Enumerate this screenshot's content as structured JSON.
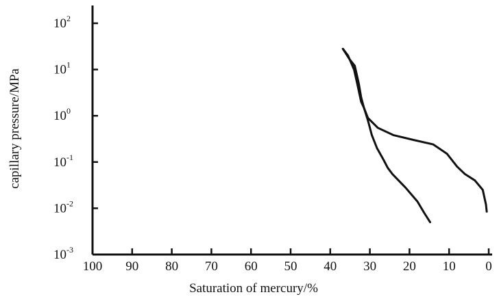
{
  "chart_data": {
    "type": "line",
    "xlabel": "Saturation of mercury/%",
    "ylabel": "capillary pressure/MPa",
    "x_axis": {
      "range": [
        100,
        0
      ],
      "reversed": true,
      "ticks": [
        100,
        90,
        80,
        70,
        60,
        50,
        40,
        30,
        20,
        10,
        0
      ],
      "tick_labels": [
        "100",
        "90",
        "80",
        "70",
        "60",
        "50",
        "40",
        "30",
        "20",
        "10",
        "0"
      ]
    },
    "y_axis": {
      "scale": "log",
      "range": [
        0.001,
        100
      ],
      "ticks": [
        {
          "value": 0.001,
          "base": "10",
          "exp": "-3"
        },
        {
          "value": 0.01,
          "base": "10",
          "exp": "-2"
        },
        {
          "value": 0.1,
          "base": "10",
          "exp": "-1"
        },
        {
          "value": 1,
          "base": "10",
          "exp": "0"
        },
        {
          "value": 10,
          "base": "10",
          "exp": "1"
        },
        {
          "value": 100,
          "base": "10",
          "exp": "2"
        }
      ]
    },
    "grid": false,
    "series": [
      {
        "color": "#111111",
        "points": [
          [
            36.8,
            28
          ],
          [
            35.5,
            20
          ],
          [
            34,
            10
          ],
          [
            33.2,
            5
          ],
          [
            32.2,
            2
          ],
          [
            31.5,
            1.5
          ],
          [
            30.5,
            0.9
          ],
          [
            28,
            0.55
          ],
          [
            24,
            0.38
          ],
          [
            19,
            0.3
          ],
          [
            14,
            0.24
          ],
          [
            10.5,
            0.15
          ],
          [
            8,
            0.08
          ],
          [
            6,
            0.055
          ],
          [
            3.5,
            0.04
          ],
          [
            1.5,
            0.025
          ],
          [
            0.7,
            0.012
          ],
          [
            0.5,
            0.0085
          ]
        ]
      },
      {
        "color": "#111111",
        "points": [
          [
            36.8,
            28
          ],
          [
            35.2,
            17
          ],
          [
            33.8,
            12
          ],
          [
            32.8,
            5
          ],
          [
            32.2,
            2.5
          ],
          [
            31.5,
            1.5
          ],
          [
            30.5,
            0.8
          ],
          [
            29.5,
            0.38
          ],
          [
            28.2,
            0.2
          ],
          [
            26.5,
            0.11
          ],
          [
            25.5,
            0.075
          ],
          [
            24.3,
            0.055
          ],
          [
            21,
            0.028
          ],
          [
            18,
            0.014
          ],
          [
            16.3,
            0.008
          ],
          [
            14.8,
            0.005
          ]
        ]
      }
    ]
  }
}
